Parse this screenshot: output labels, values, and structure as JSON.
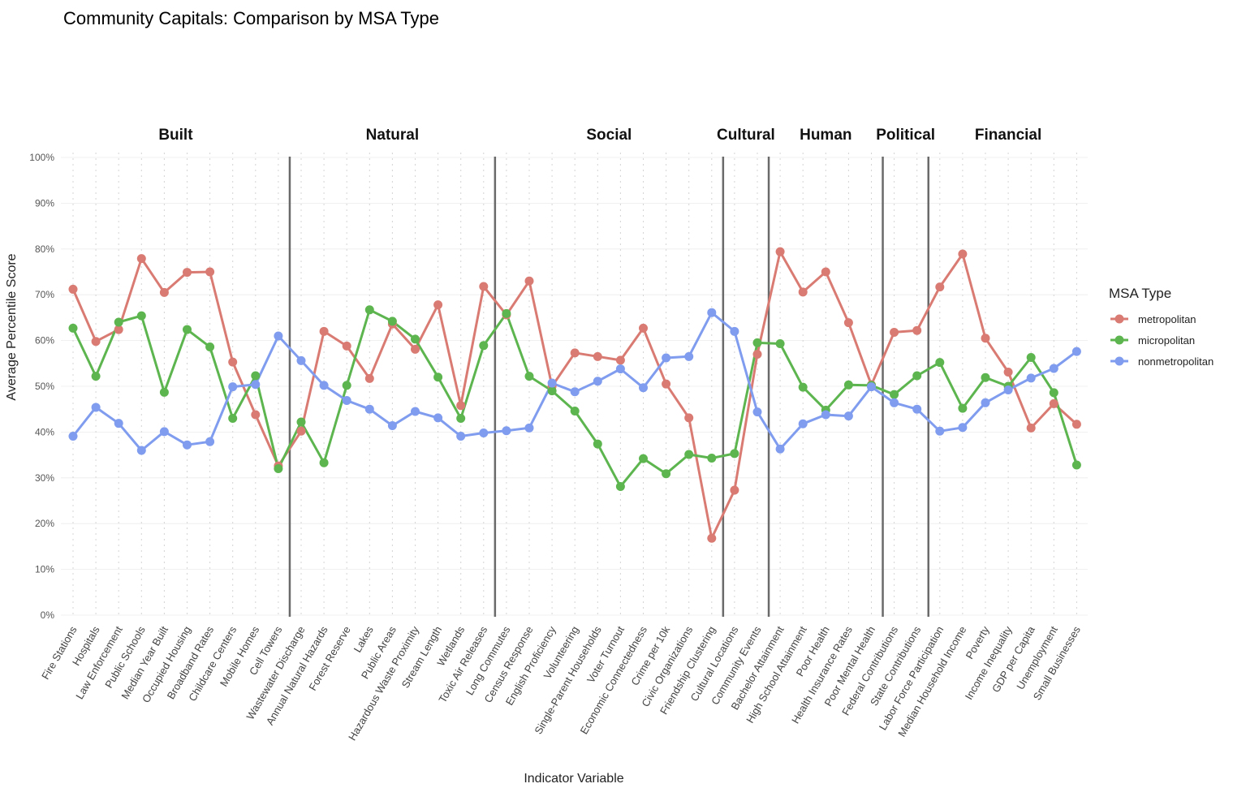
{
  "chart_data": {
    "type": "line",
    "title": "Community Capitals: Comparison by MSA Type",
    "xlabel": "Indicator Variable",
    "ylabel": "Average Percentile Score",
    "ylim": [
      0,
      100
    ],
    "y_ticks": [
      "0%",
      "10%",
      "20%",
      "30%",
      "40%",
      "50%",
      "60%",
      "70%",
      "80%",
      "90%",
      "100%"
    ],
    "categories": [
      "Fire Stations",
      "Hospitals",
      "Law Enforcement",
      "Public Schools",
      "Median Year Built",
      "Occupied Housing",
      "Broadband Rates",
      "Childcare Centers",
      "Mobile Homes",
      "Cell Towers",
      "Wastewater Discharge",
      "Annual Natural Hazards",
      "Forest Reserve",
      "Lakes",
      "Public Areas",
      "Hazardous Waste Proximity",
      "Stream Length",
      "Wetlands",
      "Toxic Air Releases",
      "Long Commutes",
      "Census Response",
      "English Proficiency",
      "Volunteering",
      "Single-Parent Households",
      "Voter Turnout",
      "Economic Connectedness",
      "Crime per 10k",
      "Civic Organizations",
      "Friendship Clustering",
      "Cultural Locations",
      "Community Events",
      "Bachelor Attainment",
      "High School Attainment",
      "Poor Health",
      "Health Insurance Rates",
      "Poor Mental Health",
      "Federal Contributions",
      "State Contributions",
      "Labor Force Participation",
      "Median Household Income",
      "Poverty",
      "Income Inequality",
      "GDP per Capita",
      "Unemployment",
      "Small Businesses"
    ],
    "groups": [
      {
        "label": "Built",
        "start": 0,
        "end": 9
      },
      {
        "label": "Natural",
        "start": 10,
        "end": 18
      },
      {
        "label": "Social",
        "start": 19,
        "end": 28
      },
      {
        "label": "Cultural",
        "start": 29,
        "end": 30
      },
      {
        "label": "Human",
        "start": 31,
        "end": 35
      },
      {
        "label": "Political",
        "start": 36,
        "end": 37
      },
      {
        "label": "Financial",
        "start": 38,
        "end": 44
      }
    ],
    "dividers_after": [
      9,
      18,
      28,
      30,
      35,
      37
    ],
    "series": [
      {
        "name": "metropolitan",
        "color": "#D97B72",
        "values": [
          71.2,
          59.8,
          62.4,
          77.9,
          70.5,
          74.9,
          75.0,
          55.3,
          43.8,
          32.6,
          40.2,
          62.0,
          58.8,
          51.7,
          63.6,
          58.1,
          67.8,
          45.8,
          71.8,
          65.6,
          73.0,
          50.0,
          57.3,
          56.5,
          55.7,
          62.7,
          50.5,
          43.1,
          16.8,
          27.3,
          57.0,
          79.4,
          70.6,
          75.0,
          63.9,
          50.3,
          61.8,
          62.2,
          71.7,
          78.9,
          60.5,
          53.1,
          40.9,
          46.2,
          41.7
        ]
      },
      {
        "name": "micropolitan",
        "color": "#5DB54F",
        "values": [
          62.7,
          52.2,
          64.0,
          65.4,
          48.7,
          62.4,
          58.6,
          43.0,
          52.3,
          32.0,
          42.2,
          33.3,
          50.2,
          66.7,
          64.2,
          60.3,
          52.0,
          43.0,
          58.9,
          65.9,
          52.2,
          49.0,
          44.6,
          37.4,
          28.1,
          34.2,
          30.9,
          35.1,
          34.3,
          35.3,
          59.5,
          59.3,
          49.8,
          44.8,
          50.3,
          50.2,
          48.2,
          52.3,
          55.2,
          45.2,
          51.9,
          50.0,
          56.3,
          48.6,
          32.8
        ]
      },
      {
        "name": "nonmetropolitan",
        "color": "#7F9CEE",
        "values": [
          39.1,
          45.4,
          41.9,
          36.0,
          40.1,
          37.2,
          37.9,
          49.9,
          50.4,
          61.0,
          55.6,
          50.2,
          46.9,
          45.0,
          41.4,
          44.5,
          43.1,
          39.1,
          39.8,
          40.3,
          40.9,
          50.7,
          48.8,
          51.1,
          53.8,
          49.7,
          56.2,
          56.5,
          66.1,
          62.0,
          44.4,
          36.3,
          41.8,
          43.8,
          43.5,
          49.9,
          46.4,
          45.0,
          40.2,
          41.0,
          46.4,
          49.2,
          51.8,
          53.9,
          57.6
        ]
      }
    ],
    "legend": {
      "title": "MSA Type",
      "position": "right"
    },
    "grid": true
  }
}
